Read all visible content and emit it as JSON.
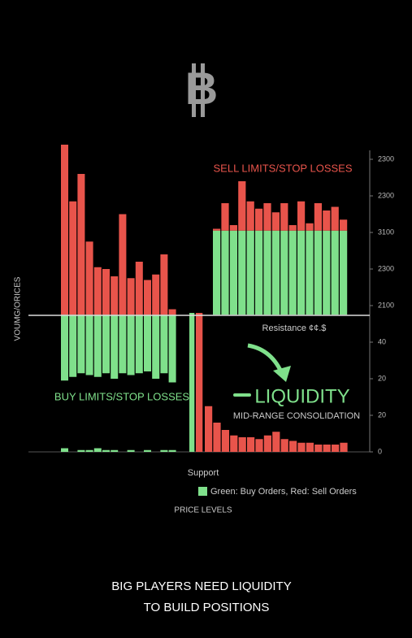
{
  "chart_data": {
    "type": "bar",
    "y_label": "VOUMG/ORICES",
    "ylim": [
      0,
      170
    ],
    "yticks": [
      {
        "value": 160,
        "label": "2300"
      },
      {
        "value": 140,
        "label": "2300"
      },
      {
        "value": 120,
        "label": "3100"
      },
      {
        "value": 100,
        "label": "2300"
      },
      {
        "value": 80,
        "label": "2100"
      },
      {
        "value": 60,
        "label": "40"
      },
      {
        "value": 40,
        "label": "20"
      },
      {
        "value": 20,
        "label": "20"
      },
      0
    ],
    "annotations": {
      "sell": "SELL LIMITS/STOP LOSSES",
      "resistance": "Resistance ¢¢.$",
      "buy": "BUY LIMITS/STOP LOSSES",
      "liquidity": "LIQUIDITY",
      "consolidation": "MID-RANGE CONSOLIDATION",
      "support": "Support",
      "x_label": "PRICE LEVELS"
    },
    "legend": "Green: Buy Orders, Red: Sell Orders",
    "footer": [
      "BIG PLAYERS NEED LIQUIDITY",
      "TO BUILD POSITIONS"
    ],
    "series": [
      {
        "color": "#e8544b",
        "base": 75,
        "values": [
          168,
          137,
          152,
          115,
          101,
          100,
          96,
          130,
          95,
          104,
          94,
          97,
          108,
          78
        ]
      },
      {
        "color": "#7fe08b",
        "base": 75,
        "values": [
          39,
          41,
          43,
          42,
          41,
          43,
          40,
          43,
          42,
          43,
          44,
          40,
          43,
          38
        ]
      },
      {
        "color": "#7fe08b",
        "base": 0,
        "values": [
          2,
          0,
          1,
          1,
          2,
          1,
          1,
          0,
          1,
          0,
          1,
          0,
          1,
          1
        ]
      },
      {
        "color": "#7fe08b",
        "base": 75,
        "values": [
          121,
          121,
          121,
          121,
          121,
          121,
          121,
          121,
          121,
          121,
          121,
          121,
          121,
          121,
          121,
          121
        ]
      },
      {
        "color": "#e8544b",
        "stacked_on": 3,
        "values": [
          1,
          15,
          3,
          27,
          16,
          12,
          15,
          10,
          15,
          3,
          16,
          4,
          15,
          11,
          13,
          6
        ]
      },
      {
        "color": "#7fe08b",
        "base": 0,
        "values": [
          76
        ]
      },
      {
        "color": "#e8544b",
        "base": 0,
        "values": [
          76
        ]
      },
      {
        "color": "#e8544b",
        "base": 0,
        "values": [
          25,
          16,
          12,
          9,
          8,
          8,
          7,
          9,
          11,
          7,
          6,
          5,
          5,
          4,
          4,
          4,
          5
        ]
      }
    ]
  }
}
